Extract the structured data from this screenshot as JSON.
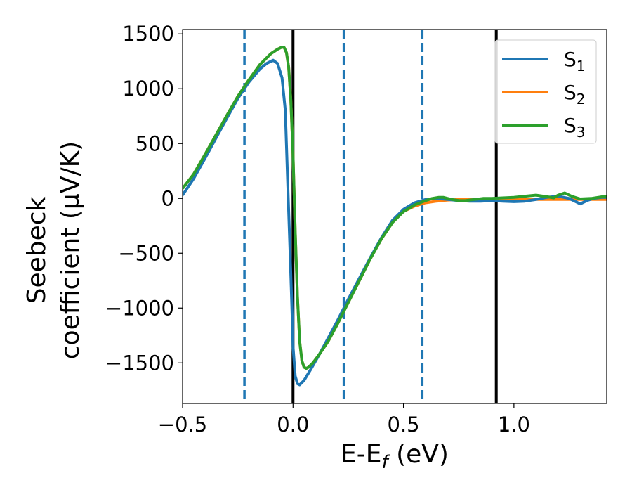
{
  "chart_data": {
    "type": "line",
    "xlabel": "E-E",
    "xlabel_sub": "f",
    "xlabel_unit": " (eV)",
    "ylabel_line1": "Seebeck",
    "ylabel_line2": "coefficient  (μV/K)",
    "xlim": [
      -0.5,
      1.42
    ],
    "ylim": [
      -1870,
      1540
    ],
    "x_ticks": [
      {
        "value": -0.5,
        "label": "−0.5"
      },
      {
        "value": 0.0,
        "label": "0.0"
      },
      {
        "value": 0.5,
        "label": "0.5"
      },
      {
        "value": 1.0,
        "label": "1.0"
      }
    ],
    "y_ticks": [
      {
        "value": 1500,
        "label": "1500"
      },
      {
        "value": 1000,
        "label": "1000"
      },
      {
        "value": 500,
        "label": "500"
      },
      {
        "value": 0,
        "label": "0"
      },
      {
        "value": -500,
        "label": "−500"
      },
      {
        "value": -1000,
        "label": "−1000"
      },
      {
        "value": -1500,
        "label": "−1500"
      }
    ],
    "vlines": [
      {
        "x": -0.22,
        "style": "dashed",
        "color": "#1f77b4"
      },
      {
        "x": 0.0,
        "style": "solid",
        "color": "#000000"
      },
      {
        "x": 0.23,
        "style": "dashed",
        "color": "#1f77b4"
      },
      {
        "x": 0.585,
        "style": "dashed",
        "color": "#1f77b4"
      },
      {
        "x": 0.92,
        "style": "solid",
        "color": "#000000"
      }
    ],
    "legend_placement": "top-right",
    "grid": false,
    "series": [
      {
        "name": "S",
        "sub": "1",
        "color": "#1f77b4",
        "x": [
          -0.5,
          -0.45,
          -0.4,
          -0.35,
          -0.3,
          -0.25,
          -0.2,
          -0.15,
          -0.12,
          -0.09,
          -0.07,
          -0.05,
          -0.035,
          -0.025,
          -0.015,
          -0.005,
          0.0,
          0.01,
          0.02,
          0.03,
          0.05,
          0.08,
          0.12,
          0.16,
          0.2,
          0.25,
          0.3,
          0.35,
          0.4,
          0.45,
          0.5,
          0.55,
          0.6,
          0.65,
          0.7,
          0.75,
          0.8,
          0.85,
          0.9,
          0.95,
          1.0,
          1.05,
          1.1,
          1.15,
          1.2,
          1.25,
          1.28,
          1.3,
          1.33,
          1.36,
          1.4,
          1.42
        ],
        "y": [
          30,
          180,
          360,
          545,
          730,
          910,
          1060,
          1180,
          1230,
          1260,
          1230,
          1100,
          800,
          200,
          -400,
          -1000,
          -1350,
          -1620,
          -1690,
          -1700,
          -1660,
          -1560,
          -1420,
          -1270,
          -1120,
          -920,
          -730,
          -540,
          -360,
          -200,
          -100,
          -40,
          -10,
          0,
          -10,
          -20,
          -25,
          -25,
          -20,
          -25,
          -30,
          -25,
          -10,
          10,
          20,
          0,
          -30,
          -50,
          -20,
          0,
          10,
          10
        ]
      },
      {
        "name": "S",
        "sub": "2",
        "color": "#ff7f0e",
        "x": [
          -0.5,
          -0.45,
          -0.4,
          -0.35,
          -0.3,
          -0.25,
          -0.2,
          -0.15,
          -0.1,
          -0.07,
          -0.05,
          -0.04,
          -0.03,
          -0.02,
          -0.01,
          0.0,
          0.01,
          0.02,
          0.03,
          0.04,
          0.05,
          0.06,
          0.07,
          0.09,
          0.12,
          0.16,
          0.2,
          0.25,
          0.3,
          0.35,
          0.4,
          0.45,
          0.5,
          0.55,
          0.6,
          0.65,
          0.7,
          0.75,
          0.8,
          0.9,
          1.0,
          1.1,
          1.2,
          1.3,
          1.42
        ],
        "y": [
          90,
          220,
          395,
          575,
          755,
          930,
          1080,
          1220,
          1320,
          1360,
          1380,
          1375,
          1330,
          1200,
          900,
          400,
          -300,
          -900,
          -1300,
          -1480,
          -1540,
          -1550,
          -1540,
          -1500,
          -1420,
          -1300,
          -1150,
          -950,
          -750,
          -550,
          -370,
          -220,
          -120,
          -70,
          -40,
          -25,
          -15,
          -10,
          -10,
          -10,
          -10,
          -10,
          -10,
          -10,
          -10
        ]
      },
      {
        "name": "S",
        "sub": "3",
        "color": "#2ca02c",
        "x": [
          -0.5,
          -0.45,
          -0.4,
          -0.35,
          -0.3,
          -0.25,
          -0.2,
          -0.15,
          -0.1,
          -0.07,
          -0.05,
          -0.04,
          -0.03,
          -0.02,
          -0.01,
          0.0,
          0.01,
          0.02,
          0.03,
          0.04,
          0.05,
          0.06,
          0.07,
          0.09,
          0.12,
          0.16,
          0.2,
          0.25,
          0.3,
          0.35,
          0.4,
          0.45,
          0.5,
          0.55,
          0.6,
          0.63,
          0.66,
          0.68,
          0.72,
          0.75,
          0.78,
          0.82,
          0.86,
          0.9,
          0.95,
          1.0,
          1.05,
          1.1,
          1.15,
          1.18,
          1.2,
          1.23,
          1.26,
          1.3,
          1.35,
          1.4,
          1.42
        ],
        "y": [
          90,
          220,
          395,
          575,
          755,
          930,
          1080,
          1220,
          1320,
          1360,
          1380,
          1375,
          1330,
          1200,
          900,
          400,
          -300,
          -900,
          -1300,
          -1480,
          -1540,
          -1550,
          -1540,
          -1500,
          -1420,
          -1300,
          -1150,
          -950,
          -750,
          -550,
          -370,
          -220,
          -120,
          -60,
          -20,
          0,
          10,
          10,
          -10,
          -20,
          -20,
          -10,
          0,
          0,
          5,
          10,
          20,
          30,
          15,
          5,
          30,
          50,
          20,
          -5,
          0,
          15,
          20
        ]
      }
    ]
  }
}
